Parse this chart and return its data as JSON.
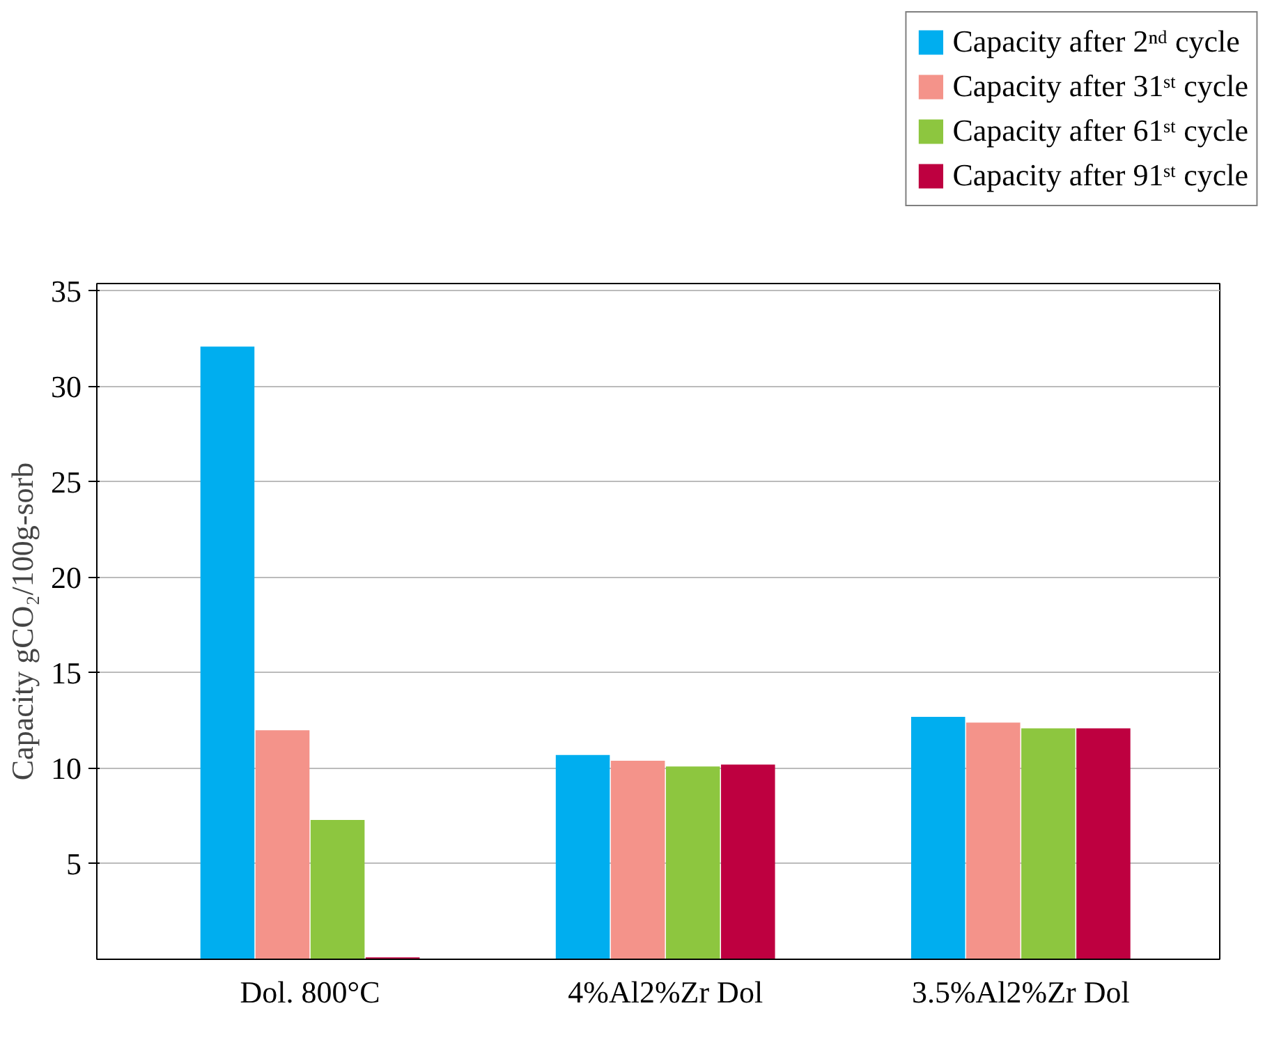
{
  "chart_data": {
    "type": "bar",
    "ylabel": "Capacity gCO₂/100g-sorb",
    "categories": [
      "Dol. 800°C",
      "4%Al2%Zr Dol",
      "3.5%Al2%Zr Dol"
    ],
    "series": [
      {
        "name": "Capacity after 2ⁿᵈ cycle",
        "color": "#00aeef",
        "values": [
          32.1,
          10.7,
          12.7
        ]
      },
      {
        "name": "Capacity after 31ˢᵗ cycle",
        "color": "#f4938a",
        "values": [
          12.0,
          10.4,
          12.4
        ]
      },
      {
        "name": "Capacity after 61ˢᵗ cycle",
        "color": "#8dc63f",
        "values": [
          7.3,
          10.1,
          12.1
        ]
      },
      {
        "name": "Capacity after 91ˢᵗ cycle",
        "color": "#be0040",
        "values": [
          0.1,
          10.2,
          12.1
        ]
      }
    ],
    "ylim": [
      0,
      35.4
    ],
    "yticks": [
      5,
      10,
      15,
      20,
      25,
      30,
      35
    ],
    "grid": "y",
    "legend": "top right"
  }
}
